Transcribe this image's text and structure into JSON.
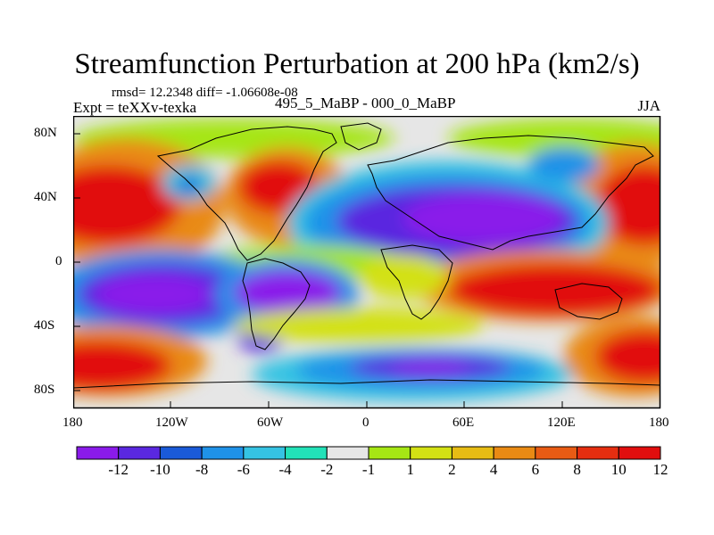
{
  "title": "Streamfunction Perturbation at 200 hPa (km2/s)",
  "stats": "rmsd= 12.2348 diff= -1.06608e-08",
  "expt": "Expt = teXXv-texka",
  "case": "495_5_MaBP - 000_0_MaBP",
  "season": "JJA",
  "lat_ticks": [
    "80N",
    "40N",
    "0",
    "40S",
    "80S"
  ],
  "lon_ticks": [
    "180",
    "120W",
    "60W",
    "0",
    "60E",
    "120E",
    "180"
  ],
  "colorbar": {
    "labels": [
      "-12",
      "-10",
      "-8",
      "-6",
      "-4",
      "-2",
      "-1",
      "1",
      "2",
      "4",
      "6",
      "8",
      "10",
      "12"
    ],
    "colors": [
      "#8a1bea",
      "#5a28e0",
      "#1a5ad8",
      "#1f92e8",
      "#35c3e3",
      "#22e2b8",
      "#e6e6e6",
      "#a6e614",
      "#d3e114",
      "#e6bc14",
      "#e98a14",
      "#e85b14",
      "#e52e10",
      "#e10e0e"
    ]
  },
  "palette": {
    "strong_neg": "#8a1bea",
    "neg": "#1f92e8",
    "weak_neg": "#35c3e3",
    "neutral": "#e6e6e6",
    "weak_pos": "#d3e114",
    "pos": "#e98a14",
    "strong_pos": "#e10e0e"
  }
}
